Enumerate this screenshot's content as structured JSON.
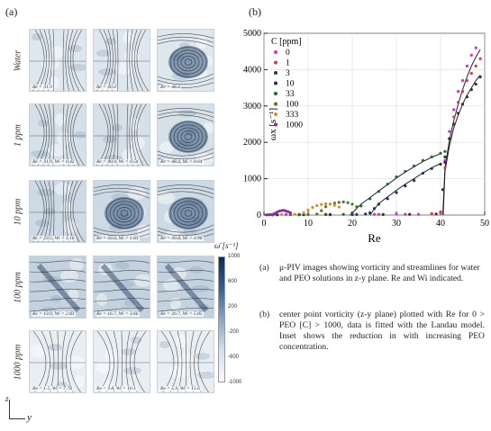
{
  "panel_a": {
    "label": "(a)",
    "rows": [
      {
        "label": "Water",
        "captions": [
          "Re = 31.9",
          "Re = 40.4",
          "Re = 48.4"
        ]
      },
      {
        "label": "1 ppm",
        "captions": [
          "Re = 31.9, Wi = 0.42",
          "Re = 40.4, Wi = 0.54",
          "Re = 48.4, Wi = 0.64"
        ]
      },
      {
        "label": "10 ppm",
        "captions": [
          "Re = 23.5, Wi = 1.16",
          "Re = 33.0, Wi = 1.63",
          "Re = 39.8, Wi = 3.96"
        ]
      },
      {
        "label": "100 ppm",
        "captions": [
          "Re = 13.0, Wi = 2.83",
          "Re = 16.7, Wi = 3.66",
          "Re = 26.7, Wi = 5.85"
        ]
      },
      {
        "label": "1000 ppm",
        "captions": [
          "Re = 1.5, Wi = 7.78",
          "Re = 3.8, Wi = 10.1",
          "Re = 5.9, Wi = 15.6"
        ]
      }
    ],
    "colorbar": {
      "label": "ω̄ [s⁻¹]",
      "ticks": [
        "1000",
        "600",
        "200",
        "-200",
        "-600",
        "-1000"
      ]
    },
    "axes": {
      "z": "z",
      "y": "y"
    }
  },
  "panel_b": {
    "label": "(b)"
  },
  "chart_data": {
    "type": "scatter",
    "xlabel": "Re",
    "ylabel": "ωx [s⁻¹]",
    "xlim": [
      0,
      50
    ],
    "ylim": [
      0,
      5000
    ],
    "xticks": [
      0,
      10,
      20,
      30,
      40,
      50
    ],
    "yticks": [
      0,
      1000,
      2000,
      3000,
      4000,
      5000
    ],
    "grid": true,
    "legend": {
      "title": "C [ppm]",
      "position": "top-left"
    },
    "series": [
      {
        "name": "0",
        "color": "#cc33cc",
        "points": [
          [
            1,
            10
          ],
          [
            5,
            15
          ],
          [
            10,
            10
          ],
          [
            15,
            20
          ],
          [
            20,
            15
          ],
          [
            25,
            20
          ],
          [
            30,
            25
          ],
          [
            35,
            20
          ],
          [
            38,
            40
          ],
          [
            40,
            90
          ],
          [
            41,
            1500
          ],
          [
            42,
            2300
          ],
          [
            43,
            2900
          ],
          [
            44,
            3400
          ],
          [
            45,
            3700
          ],
          [
            46,
            4100
          ],
          [
            47,
            4400
          ],
          [
            48,
            4600
          ]
        ]
      },
      {
        "name": "1",
        "color": "#d43f3f",
        "points": [
          [
            2,
            5
          ],
          [
            8,
            10
          ],
          [
            14,
            15
          ],
          [
            20,
            10
          ],
          [
            26,
            20
          ],
          [
            32,
            20
          ],
          [
            38,
            30
          ],
          [
            40,
            60
          ],
          [
            41,
            1300
          ],
          [
            42,
            2100
          ],
          [
            43,
            2700
          ],
          [
            44,
            3100
          ],
          [
            45,
            3400
          ],
          [
            46,
            3700
          ],
          [
            47,
            3900
          ],
          [
            48,
            4100
          ],
          [
            49,
            4300
          ]
        ]
      },
      {
        "name": "3",
        "color": "#333333",
        "points": [
          [
            3,
            5
          ],
          [
            9,
            10
          ],
          [
            15,
            10
          ],
          [
            21,
            15
          ],
          [
            27,
            15
          ],
          [
            33,
            20
          ],
          [
            39,
            30
          ],
          [
            40.5,
            700
          ],
          [
            41,
            1600
          ],
          [
            42,
            2100
          ],
          [
            43,
            2500
          ],
          [
            44,
            2800
          ],
          [
            45,
            3050
          ],
          [
            46,
            3250
          ],
          [
            47,
            3450
          ],
          [
            48,
            3600
          ],
          [
            49,
            3800
          ]
        ]
      },
      {
        "name": "10",
        "color": "#1b2f6b",
        "points": [
          [
            2,
            10
          ],
          [
            8,
            10
          ],
          [
            14,
            15
          ],
          [
            20,
            20
          ],
          [
            23,
            30
          ],
          [
            24,
            60
          ],
          [
            25,
            180
          ],
          [
            26,
            300
          ],
          [
            28,
            450
          ],
          [
            30,
            620
          ],
          [
            32,
            800
          ],
          [
            34,
            950
          ],
          [
            36,
            1150
          ],
          [
            38,
            1280
          ],
          [
            40,
            1400
          ],
          [
            41,
            1450
          ]
        ]
      },
      {
        "name": "33",
        "color": "#1f6b2a",
        "points": [
          [
            2,
            10
          ],
          [
            8,
            15
          ],
          [
            14,
            15
          ],
          [
            18,
            20
          ],
          [
            20,
            60
          ],
          [
            22,
            250
          ],
          [
            24,
            450
          ],
          [
            26,
            650
          ],
          [
            28,
            850
          ],
          [
            30,
            1050
          ],
          [
            32,
            1200
          ],
          [
            34,
            1350
          ],
          [
            36,
            1500
          ],
          [
            38,
            1600
          ],
          [
            40,
            1700
          ],
          [
            41,
            1750
          ]
        ]
      },
      {
        "name": "100",
        "color": "#4a7a2a",
        "points": [
          [
            2,
            10
          ],
          [
            6,
            10
          ],
          [
            10,
            15
          ],
          [
            12,
            30
          ],
          [
            13,
            120
          ],
          [
            14,
            230
          ],
          [
            15,
            300
          ],
          [
            16,
            330
          ],
          [
            17,
            350
          ],
          [
            18,
            360
          ],
          [
            19,
            340
          ],
          [
            20,
            300
          ],
          [
            21,
            230
          ]
        ]
      },
      {
        "name": "333",
        "color": "#e08a1f",
        "points": [
          [
            1,
            10
          ],
          [
            4,
            15
          ],
          [
            7,
            20
          ],
          [
            9,
            60
          ],
          [
            10,
            140
          ],
          [
            11,
            210
          ],
          [
            12,
            260
          ],
          [
            13,
            290
          ],
          [
            14,
            310
          ],
          [
            15,
            300
          ],
          [
            16,
            270
          ],
          [
            17,
            220
          ]
        ]
      },
      {
        "name": "1000",
        "color": "#8a2da0",
        "points": [
          [
            0.5,
            5
          ],
          [
            1,
            8
          ],
          [
            1.5,
            10
          ],
          [
            2,
            20
          ],
          [
            2.5,
            50
          ],
          [
            3,
            80
          ],
          [
            3.5,
            110
          ],
          [
            4,
            120
          ],
          [
            4.5,
            130
          ],
          [
            5,
            110
          ],
          [
            5.5,
            90
          ],
          [
            6,
            60
          ]
        ]
      }
    ],
    "fits": [
      {
        "color": "#222222",
        "points": [
          [
            40.5,
            0
          ],
          [
            41,
            1300
          ],
          [
            42,
            2050
          ],
          [
            43,
            2600
          ],
          [
            44,
            3050
          ],
          [
            45,
            3450
          ],
          [
            46,
            3800
          ],
          [
            47,
            4100
          ],
          [
            48,
            4350
          ],
          [
            49,
            4550
          ]
        ]
      },
      {
        "color": "#222222",
        "points": [
          [
            40.6,
            0
          ],
          [
            41,
            1200
          ],
          [
            42,
            1900
          ],
          [
            43,
            2400
          ],
          [
            44,
            2750
          ],
          [
            45,
            3050
          ],
          [
            46,
            3300
          ],
          [
            47,
            3500
          ],
          [
            48,
            3700
          ],
          [
            49,
            3850
          ]
        ]
      },
      {
        "color": "#222222",
        "points": [
          [
            24,
            0
          ],
          [
            26,
            320
          ],
          [
            28,
            500
          ],
          [
            30,
            680
          ],
          [
            32,
            850
          ],
          [
            34,
            1000
          ],
          [
            36,
            1160
          ],
          [
            38,
            1300
          ],
          [
            40,
            1420
          ]
        ]
      },
      {
        "color": "#222222",
        "points": [
          [
            19.5,
            0
          ],
          [
            22,
            300
          ],
          [
            24,
            480
          ],
          [
            26,
            660
          ],
          [
            28,
            840
          ],
          [
            30,
            1020
          ],
          [
            32,
            1180
          ],
          [
            34,
            1330
          ],
          [
            36,
            1470
          ],
          [
            38,
            1590
          ],
          [
            40,
            1690
          ]
        ]
      }
    ]
  },
  "caption": {
    "a_label": "(a)",
    "a_text": "μ-PIV images showing vorticity and streamlines for water and PEO solutions in z-y plane. Re and Wi indicated.",
    "b_label": "(b)",
    "b_text": "center point vorticity (z-y plane) plotted with Re for 0 > PEO [C] > 1000, data is fitted with the Landau model. Inset shows the reduction in with increasing PEO concentration."
  }
}
